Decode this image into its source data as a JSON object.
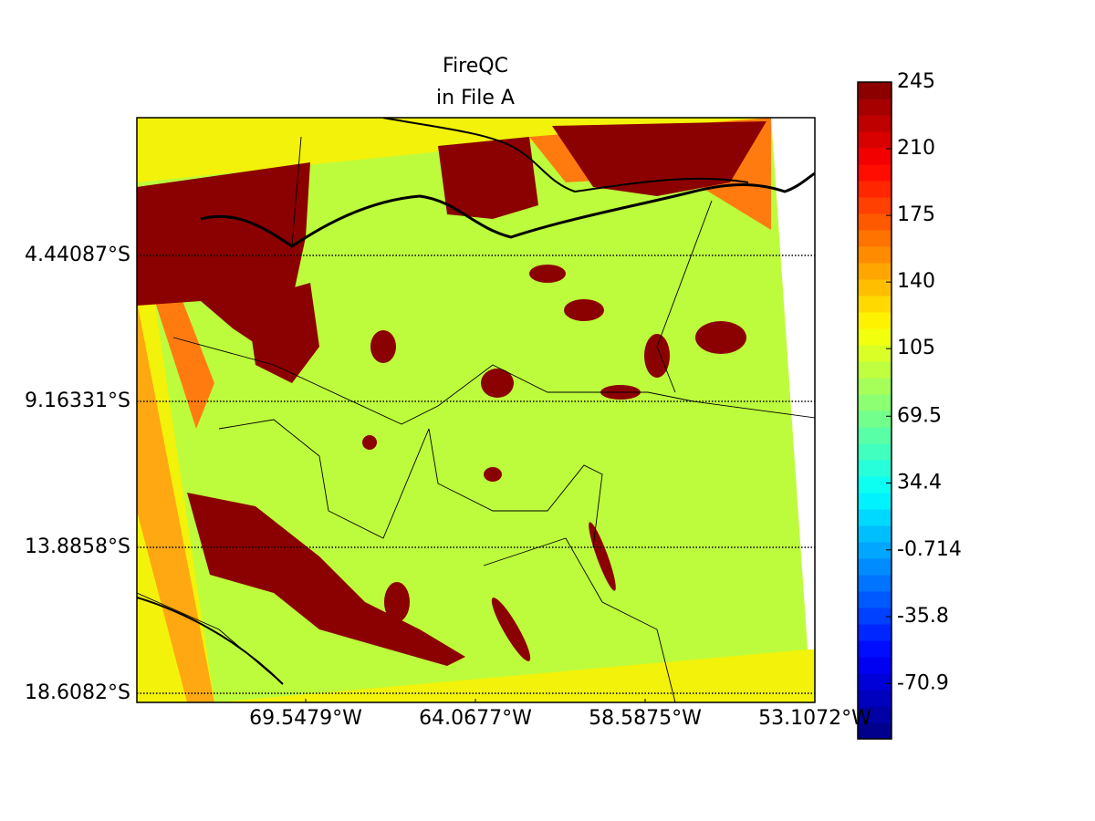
{
  "chart_data": {
    "type": "map",
    "title": [
      "FireQC",
      "in File A"
    ],
    "xlim": [
      -75,
      -53.1072
    ],
    "ylim": [
      -18.903,
      0.0159
    ],
    "xticks": [
      {
        "value": -69.5479,
        "label": "69.5479°W"
      },
      {
        "value": -64.0677,
        "label": "64.0677°W"
      },
      {
        "value": -58.5875,
        "label": "58.5875°W"
      },
      {
        "value": -53.1072,
        "label": "53.1072°W"
      }
    ],
    "yticks": [
      {
        "value": -4.44087,
        "label": "4.44087°S"
      },
      {
        "value": -9.16331,
        "label": "9.16331°S"
      },
      {
        "value": -13.8858,
        "label": "13.8858°S"
      },
      {
        "value": -18.6082,
        "label": "18.6082°S"
      }
    ],
    "grid": true,
    "colorbar": {
      "colormap": "jet",
      "clim": [
        -100,
        245
      ],
      "ticks": [
        245,
        210,
        175,
        140,
        105,
        69.5,
        34.4,
        -0.714,
        -35.8,
        -70.9
      ]
    }
  }
}
